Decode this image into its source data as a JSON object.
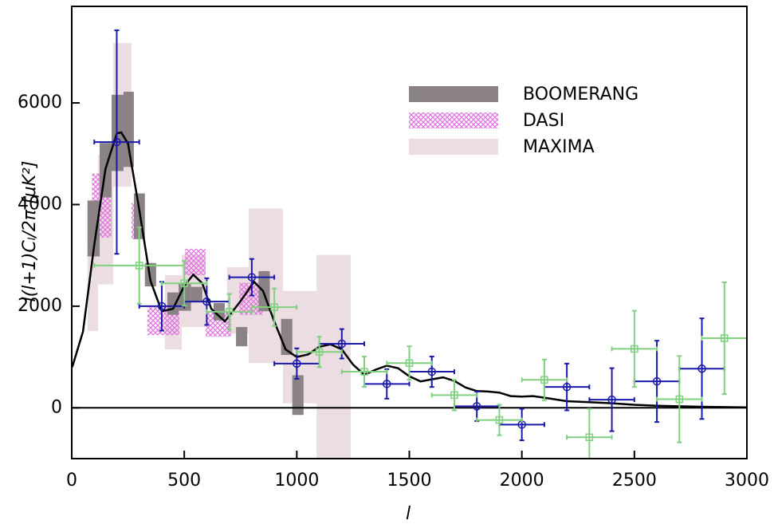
{
  "chart_data": {
    "type": "errorbar",
    "xlabel": "l",
    "ylabel": "l(l+1)Cₗ/2π [μK²]",
    "xlim": [
      0,
      3000
    ],
    "ylim": [
      -1000,
      7900
    ],
    "xticks": [
      0,
      500,
      1000,
      1500,
      2000,
      2500,
      3000
    ],
    "yticks": [
      0,
      2000,
      4000,
      6000
    ],
    "legend": "upper right",
    "bands": [
      {
        "name": "BOOMERANG",
        "color": "#8a8284",
        "pattern": "solid",
        "boxes": [
          {
            "x": [
              70,
              124
            ],
            "y": [
              2980,
              4080
            ]
          },
          {
            "x": [
              124,
              177
            ],
            "y": [
              4140,
              5210
            ]
          },
          {
            "x": [
              177,
              230
            ],
            "y": [
              4660,
              6160
            ]
          },
          {
            "x": [
              230,
              276
            ],
            "y": [
              4740,
              6220
            ]
          },
          {
            "x": [
              276,
              325
            ],
            "y": [
              3320,
              4220
            ]
          },
          {
            "x": [
              325,
              375
            ],
            "y": [
              2390,
              2850
            ]
          },
          {
            "x": [
              425,
              475
            ],
            "y": [
              1830,
              2270
            ]
          },
          {
            "x": [
              475,
              530
            ],
            "y": [
              1910,
              2460
            ]
          },
          {
            "x": [
              530,
              580
            ],
            "y": [
              2090,
              2380
            ]
          },
          {
            "x": [
              630,
              680
            ],
            "y": [
              1720,
              2060
            ]
          },
          {
            "x": [
              730,
              780
            ],
            "y": [
              1210,
              1590
            ]
          },
          {
            "x": [
              830,
              880
            ],
            "y": [
              1900,
              2690
            ]
          },
          {
            "x": [
              930,
              980
            ],
            "y": [
              1040,
              1750
            ]
          },
          {
            "x": [
              980,
              1030
            ],
            "y": [
              -140,
              640
            ]
          }
        ]
      },
      {
        "name": "DASI",
        "color": "#e070e0",
        "pattern": "hatch",
        "boxes": [
          {
            "x": [
              90,
              177
            ],
            "y": [
              3350,
              4610
            ]
          },
          {
            "x": [
              205,
              265
            ],
            "y": [
              4790,
              5920
            ]
          },
          {
            "x": [
              265,
              300
            ],
            "y": [
              3320,
              4030
            ]
          },
          {
            "x": [
              336,
              478
            ],
            "y": [
              1430,
              1980
            ]
          },
          {
            "x": [
              503,
              595
            ],
            "y": [
              2610,
              3130
            ]
          },
          {
            "x": [
              595,
              708
            ],
            "y": [
              1400,
              1910
            ]
          },
          {
            "x": [
              744,
              850
            ],
            "y": [
              1830,
              2460
            ]
          }
        ]
      },
      {
        "name": "MAXIMA",
        "color": "#ecdde2",
        "pattern": "solid",
        "boxes": [
          {
            "x": [
              70,
              117
            ],
            "y": [
              1510,
              3240
            ]
          },
          {
            "x": [
              117,
              184
            ],
            "y": [
              2430,
              4980
            ]
          },
          {
            "x": [
              184,
              265
            ],
            "y": [
              4350,
              7180
            ]
          },
          {
            "x": [
              414,
              489
            ],
            "y": [
              1150,
              2610
            ]
          },
          {
            "x": [
              489,
              595
            ],
            "y": [
              1590,
              3010
            ]
          },
          {
            "x": [
              690,
              786
            ],
            "y": [
              1460,
              2770
            ]
          },
          {
            "x": [
              786,
              938
            ],
            "y": [
              880,
              3920
            ]
          },
          {
            "x": [
              938,
              1088
            ],
            "y": [
              90,
              2300
            ]
          },
          {
            "x": [
              1088,
              1240
            ],
            "y": [
              -1000,
              3010
            ]
          }
        ]
      }
    ],
    "curve": {
      "color": "#000000",
      "x": [
        2,
        50,
        100,
        150,
        200,
        220,
        250,
        300,
        350,
        400,
        450,
        500,
        540,
        580,
        620,
        680,
        750,
        810,
        850,
        900,
        950,
        1000,
        1050,
        1100,
        1150,
        1200,
        1250,
        1300,
        1350,
        1400,
        1450,
        1500,
        1550,
        1600,
        1650,
        1700,
        1750,
        1800,
        1850,
        1900,
        1950,
        2000,
        2050,
        2100,
        2200,
        2300,
        2400,
        2500,
        2600,
        2800,
        3000
      ],
      "y": [
        800,
        1500,
        3200,
        4700,
        5400,
        5420,
        5200,
        3900,
        2500,
        1900,
        1950,
        2400,
        2620,
        2450,
        1950,
        1700,
        2100,
        2480,
        2300,
        1700,
        1150,
        1000,
        1050,
        1200,
        1250,
        1150,
        850,
        650,
        750,
        830,
        780,
        620,
        520,
        560,
        600,
        530,
        400,
        330,
        320,
        300,
        230,
        220,
        230,
        200,
        130,
        110,
        90,
        60,
        40,
        20,
        10
      ]
    },
    "series": [
      {
        "color": "#1a1aaa",
        "marker": "circle",
        "x": [
          200,
          400,
          600,
          800,
          1000,
          1200,
          1400,
          1600,
          1800,
          2000,
          2200,
          2400,
          2600,
          2800
        ],
        "y": [
          5230,
          2000,
          2090,
          2570,
          870,
          1260,
          470,
          710,
          30,
          -330,
          410,
          160,
          520,
          770
        ],
        "xerr": [
          100,
          100,
          100,
          100,
          100,
          100,
          100,
          100,
          100,
          100,
          100,
          100,
          100,
          100
        ],
        "yerr": [
          2200,
          480,
          460,
          360,
          300,
          290,
          290,
          300,
          290,
          310,
          460,
          620,
          800,
          990
        ]
      },
      {
        "color": "#80d080",
        "marker": "square",
        "x": [
          300,
          500,
          700,
          900,
          1100,
          1300,
          1500,
          1700,
          1900,
          2100,
          2300,
          2500,
          2700,
          2900
        ],
        "y": [
          2800,
          2450,
          1890,
          1980,
          1100,
          710,
          880,
          250,
          -240,
          550,
          -580,
          1160,
          170,
          1370
        ],
        "xerr": [
          200,
          100,
          100,
          100,
          100,
          100,
          100,
          100,
          100,
          100,
          100,
          100,
          100,
          100
        ],
        "yerr": [
          750,
          440,
          350,
          370,
          300,
          300,
          330,
          300,
          300,
          400,
          560,
          750,
          850,
          1100
        ]
      }
    ]
  }
}
